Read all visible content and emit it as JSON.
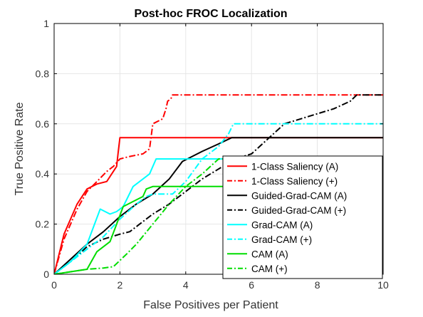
{
  "chart_data": {
    "type": "line",
    "title": "Post-hoc FROC Localization",
    "xlabel": "False Positives per Patient",
    "ylabel": "True Positive Rate",
    "xlim": [
      0,
      10
    ],
    "ylim": [
      0,
      1
    ],
    "xticks": [
      0,
      2,
      4,
      6,
      8,
      10
    ],
    "xtick_labels": [
      "0",
      "2",
      "4",
      "6",
      "8",
      "10"
    ],
    "yticks": [
      0,
      0.2,
      0.4,
      0.6,
      0.8,
      1
    ],
    "ytick_labels": [
      "0",
      "0.2",
      "0.4",
      "0.6",
      "0.8",
      "1"
    ],
    "grid": true,
    "legend_position": "bottom-right",
    "series": [
      {
        "name": "1-Class Saliency (A)",
        "color": "#ff0000",
        "dash": "solid",
        "x": [
          0,
          0.3,
          0.7,
          1.0,
          1.3,
          1.6,
          1.9,
          1.95,
          2.0,
          5.4,
          10
        ],
        "y": [
          0,
          0.16,
          0.28,
          0.34,
          0.36,
          0.37,
          0.43,
          0.49,
          0.545,
          0.545,
          0.545
        ]
      },
      {
        "name": "1-Class Saliency (+)",
        "color": "#ff0000",
        "dash": "dashdot",
        "x": [
          0,
          0.3,
          0.7,
          1.0,
          1.3,
          1.6,
          1.8,
          2.0,
          2.3,
          2.7,
          2.9,
          3.0,
          3.3,
          3.4,
          3.45,
          3.55,
          3.6,
          10
        ],
        "y": [
          0,
          0.14,
          0.26,
          0.33,
          0.37,
          0.41,
          0.43,
          0.46,
          0.47,
          0.48,
          0.5,
          0.6,
          0.62,
          0.66,
          0.69,
          0.7,
          0.715,
          0.715
        ]
      },
      {
        "name": "Guided-Grad-CAM (A)",
        "color": "#000000",
        "dash": "solid",
        "x": [
          0,
          0.5,
          1.0,
          1.5,
          2.0,
          2.5,
          3.0,
          3.5,
          3.9,
          4.5,
          5.0,
          5.4,
          10
        ],
        "y": [
          0,
          0.06,
          0.12,
          0.17,
          0.23,
          0.28,
          0.32,
          0.38,
          0.45,
          0.49,
          0.52,
          0.545,
          0.545
        ]
      },
      {
        "name": "Guided-Grad-CAM (+)",
        "color": "#000000",
        "dash": "dashdot",
        "x": [
          0,
          0.5,
          1.0,
          1.5,
          2.0,
          2.3,
          2.6,
          3.0,
          3.5,
          4.0,
          4.5,
          5.0,
          5.5,
          6.0,
          6.5,
          7.0,
          7.5,
          8.0,
          8.5,
          9.0,
          9.2,
          10
        ],
        "y": [
          0,
          0.05,
          0.11,
          0.14,
          0.16,
          0.17,
          0.2,
          0.24,
          0.28,
          0.33,
          0.38,
          0.42,
          0.46,
          0.48,
          0.54,
          0.6,
          0.62,
          0.64,
          0.66,
          0.69,
          0.715,
          0.715
        ]
      },
      {
        "name": "Grad-CAM (A)",
        "color": "#00ffff",
        "dash": "solid",
        "x": [
          0,
          0.5,
          1.0,
          1.4,
          1.7,
          1.9,
          2.1,
          2.4,
          2.6,
          2.9,
          3.1,
          5.4,
          10
        ],
        "y": [
          0,
          0.05,
          0.12,
          0.26,
          0.24,
          0.25,
          0.27,
          0.35,
          0.37,
          0.4,
          0.46,
          0.46,
          0.46
        ]
      },
      {
        "name": "Grad-CAM (+)",
        "color": "#00ffff",
        "dash": "dashdot",
        "x": [
          0,
          0.5,
          1.0,
          1.5,
          2.0,
          2.5,
          2.8,
          3.0,
          3.6,
          4.0,
          4.5,
          5.0,
          5.3,
          5.45,
          10
        ],
        "y": [
          0,
          0.05,
          0.1,
          0.15,
          0.22,
          0.28,
          0.31,
          0.32,
          0.32,
          0.37,
          0.46,
          0.51,
          0.56,
          0.6,
          0.6
        ]
      },
      {
        "name": "CAM (A)",
        "color": "#00dd00",
        "dash": "solid",
        "x": [
          0,
          0.5,
          1.0,
          1.3,
          1.7,
          1.9,
          2.1,
          2.4,
          2.7,
          2.8,
          3.0,
          3.5,
          5.0,
          5.4,
          10
        ],
        "y": [
          0,
          0.01,
          0.02,
          0.09,
          0.13,
          0.2,
          0.27,
          0.29,
          0.31,
          0.34,
          0.35,
          0.35,
          0.35,
          0.35,
          0.35
        ]
      },
      {
        "name": "CAM (+)",
        "color": "#00dd00",
        "dash": "dashdot",
        "x": [
          0,
          0.5,
          1.0,
          1.5,
          1.8,
          2.2,
          2.5,
          3.0,
          3.5,
          4.0,
          4.5,
          5.0,
          5.4
        ],
        "y": [
          0,
          0.01,
          0.02,
          0.025,
          0.03,
          0.08,
          0.12,
          0.2,
          0.28,
          0.35,
          0.4,
          0.46,
          0.46
        ]
      }
    ]
  }
}
